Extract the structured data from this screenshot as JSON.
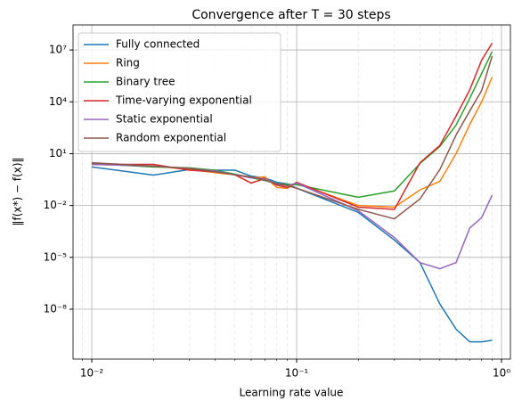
{
  "chart_data": {
    "type": "line",
    "title": "Convergence after T = 30 steps",
    "x_label": "Learning rate value",
    "y_label": "‖f(x*) − f(x)‖",
    "x_log": true,
    "y_log": true,
    "grid": true,
    "legend": "upper left",
    "x": [
      0.01,
      0.02,
      0.03,
      0.04,
      0.05,
      0.06,
      0.07,
      0.08,
      0.09,
      0.1,
      0.2,
      0.3,
      0.4,
      0.5,
      0.6,
      0.7,
      0.8,
      0.9
    ],
    "xlim": [
      0.0081,
      1.105
    ],
    "ylim": [
      1.3e-11,
      280000000.0
    ],
    "xticks": [
      {
        "value": 0.01,
        "label": "10⁻²"
      },
      {
        "value": 0.1,
        "label": "10⁻¹"
      },
      {
        "value": 1,
        "label": "10⁰"
      }
    ],
    "xminorticks": [
      0.009,
      0.02,
      0.03,
      0.04,
      0.05,
      0.06,
      0.07,
      0.08,
      0.09,
      0.2,
      0.3,
      0.4,
      0.5,
      0.6,
      0.7,
      0.8,
      0.9
    ],
    "yticks": [
      {
        "value": 1e-08,
        "label": "10⁻⁸"
      },
      {
        "value": 1e-05,
        "label": "10⁻⁵"
      },
      {
        "value": 0.01,
        "label": "10⁻²"
      },
      {
        "value": 10,
        "label": "10¹"
      },
      {
        "value": 10000,
        "label": "10⁴"
      },
      {
        "value": 10000000,
        "label": "10⁷"
      }
    ],
    "series": [
      {
        "name": "Fully connected",
        "color": "#1f77b4",
        "values": [
          1.7,
          0.58,
          1.2,
          1.1,
          1.1,
          0.5,
          0.4,
          0.22,
          0.18,
          0.1,
          0.004,
          0.0001,
          5e-06,
          2e-08,
          7e-10,
          1.3e-10,
          1.3e-10,
          1.6e-10
        ]
      },
      {
        "name": "Ring",
        "color": "#ff7f0e",
        "values": [
          2.4,
          1.9,
          1.2,
          0.8,
          0.6,
          0.4,
          0.45,
          0.11,
          0.1,
          0.2,
          0.01,
          0.008,
          0.08,
          0.25,
          10,
          500,
          10000,
          270000
        ]
      },
      {
        "name": "Binary tree",
        "color": "#2ca02c",
        "values": [
          2.7,
          1.7,
          1.5,
          1.1,
          0.65,
          0.4,
          0.28,
          0.18,
          0.17,
          0.16,
          0.03,
          0.07,
          2.7,
          26,
          450,
          16000,
          440000,
          8000000
        ]
      },
      {
        "name": "Time-varying exponential",
        "color": "#d62728",
        "values": [
          2.4,
          2.4,
          1.1,
          0.9,
          0.6,
          0.2,
          0.36,
          0.15,
          0.11,
          0.22,
          0.008,
          0.006,
          3,
          30,
          1500,
          50000,
          2600000,
          25000000
        ]
      },
      {
        "name": "Static exponential",
        "color": "#9467bd",
        "values": [
          2.4,
          1.9,
          1.4,
          1.0,
          0.6,
          0.4,
          0.35,
          0.17,
          0.14,
          0.2,
          0.005,
          0.00014,
          5e-06,
          2.2e-06,
          5e-06,
          0.0005,
          0.002,
          0.04
        ]
      },
      {
        "name": "Random exponential",
        "color": "#8c564b",
        "values": [
          3,
          1.9,
          1.4,
          0.9,
          0.6,
          0.45,
          0.3,
          0.18,
          0.14,
          0.1,
          0.006,
          0.0017,
          0.024,
          1.2,
          120,
          3000,
          45000,
          4500000
        ]
      }
    ]
  }
}
